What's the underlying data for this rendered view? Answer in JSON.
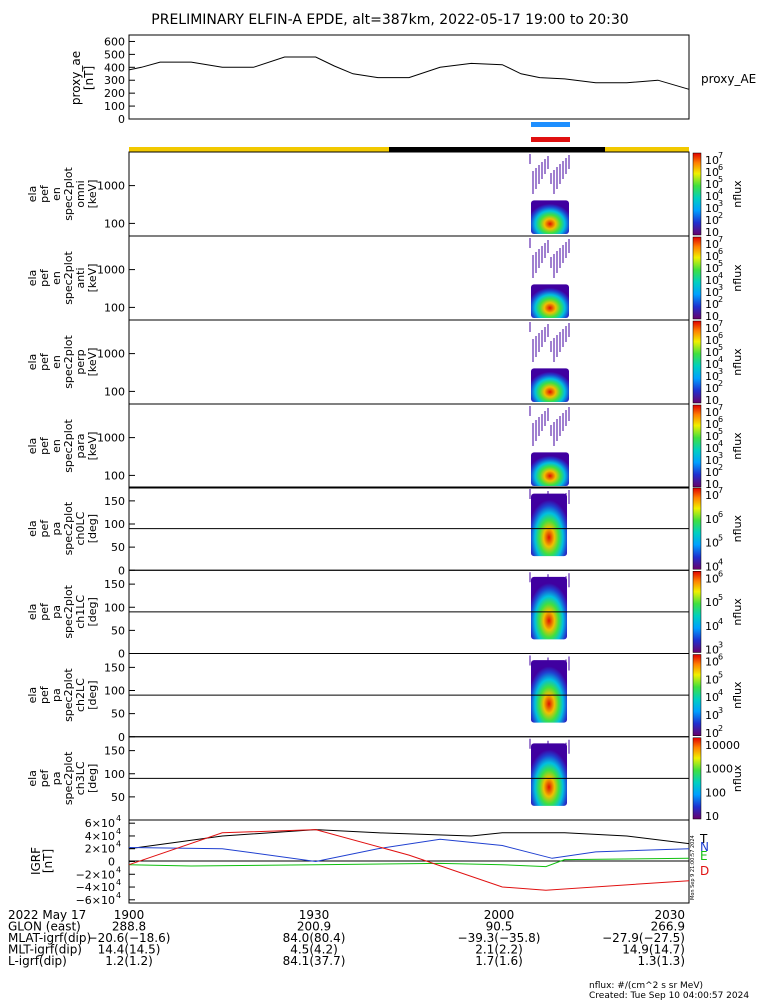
{
  "title": "PRELIMINARY ELFIN-A EPDE, alt=387km, 2022-05-17 19:00 to 20:30",
  "colors": {
    "gold": "#f2c900",
    "black": "#000000",
    "blue_flag": "#1e8fff",
    "red_flag": "#e01010",
    "ae_line": "#000000",
    "grf_T": "#000000",
    "grf_N": "#2040d0",
    "grf_E": "#10c010",
    "grf_D": "#e01010"
  },
  "proxy_ae": {
    "ylabel_lines": [
      "proxy_ae",
      "[nT]"
    ],
    "right_label": "proxy_AE",
    "ticks": [
      "0",
      "100",
      "200",
      "300",
      "400",
      "500",
      "600"
    ]
  },
  "spectrogram_panels": [
    {
      "ylabel_lines": [
        "ela",
        "pef",
        "en",
        "spec2plot",
        "omni",
        "[keV]"
      ],
      "ticks": [
        "100",
        "1000"
      ],
      "colorbar_ticks": [
        "10",
        "10",
        "10",
        "10",
        "10",
        "10",
        "10"
      ],
      "colorbar_exps": [
        "7",
        "6",
        "5",
        "4",
        "3",
        "2",
        ""
      ],
      "zlabel": "nflux"
    },
    {
      "ylabel_lines": [
        "ela",
        "pef",
        "en",
        "spec2plot",
        "anti",
        "[keV]"
      ],
      "ticks": [
        "100",
        "1000"
      ],
      "colorbar_ticks": [
        "10",
        "10",
        "10",
        "10",
        "10",
        "10",
        "10"
      ],
      "colorbar_exps": [
        "7",
        "6",
        "5",
        "4",
        "3",
        "2",
        ""
      ],
      "zlabel": "nflux"
    },
    {
      "ylabel_lines": [
        "ela",
        "pef",
        "en",
        "spec2plot",
        "perp",
        "[keV]"
      ],
      "ticks": [
        "100",
        "1000"
      ],
      "colorbar_ticks": [
        "10",
        "10",
        "10",
        "10",
        "10",
        "10",
        "10"
      ],
      "colorbar_exps": [
        "7",
        "6",
        "5",
        "4",
        "3",
        "2",
        ""
      ],
      "zlabel": "nflux"
    },
    {
      "ylabel_lines": [
        "ela",
        "pef",
        "en",
        "spec2plot",
        "para",
        "[keV]"
      ],
      "ticks": [
        "100",
        "1000"
      ],
      "colorbar_ticks": [
        "10",
        "10",
        "10",
        "10",
        "10",
        "10",
        "10"
      ],
      "colorbar_exps": [
        "7",
        "6",
        "5",
        "4",
        "3",
        "2",
        ""
      ],
      "zlabel": "nflux"
    }
  ],
  "pitch_panels": [
    {
      "ylabel_lines": [
        "ela",
        "pef",
        "pa",
        "spec2plot",
        "ch0LC",
        "[deg]"
      ],
      "ticks": [
        "0",
        "50",
        "100",
        "150"
      ],
      "colorbar_ticks": [
        "10",
        "10",
        "10",
        "10"
      ],
      "colorbar_exps": [
        "7",
        "6",
        "5",
        "4"
      ],
      "zlabel": "nflux"
    },
    {
      "ylabel_lines": [
        "ela",
        "pef",
        "pa",
        "spec2plot",
        "ch1LC",
        "[deg]"
      ],
      "ticks": [
        "0",
        "50",
        "100",
        "150"
      ],
      "colorbar_ticks": [
        "10",
        "10",
        "10",
        "10"
      ],
      "colorbar_exps": [
        "6",
        "5",
        "4",
        "3"
      ],
      "zlabel": "nflux"
    },
    {
      "ylabel_lines": [
        "ela",
        "pef",
        "pa",
        "spec2plot",
        "ch2LC",
        "[deg]"
      ],
      "ticks": [
        "0",
        "50",
        "100",
        "150"
      ],
      "colorbar_ticks": [
        "10",
        "10",
        "10",
        "10",
        "10"
      ],
      "colorbar_exps": [
        "6",
        "5",
        "4",
        "3",
        "2"
      ],
      "zlabel": "nflux"
    },
    {
      "ylabel_lines": [
        "ela",
        "pef",
        "pa",
        "spec2plot",
        "ch3LC",
        "[deg]"
      ],
      "ticks": [
        "50",
        "100",
        "150"
      ],
      "colorbar_ticks": [
        "10000",
        "1000",
        "100",
        "10"
      ],
      "colorbar_exps": [
        "",
        "",
        "",
        ""
      ],
      "zlabel": "nflux"
    }
  ],
  "igrf": {
    "ylabel_lines": [
      "IGRF",
      "[nT]"
    ],
    "ticks": [
      "−6×10",
      "−4×10",
      "−2×10",
      "0",
      "2×10",
      "4×10",
      "6×10"
    ],
    "tick_exp": "4",
    "legend": [
      "T",
      "N",
      "E",
      "D"
    ],
    "stamp": "Mon Sep 9 21:00:57 2024"
  },
  "ephemeris": {
    "rows": [
      {
        "label": "2022 May 17",
        "values": [
          "1900",
          "1930",
          "2000",
          "2030"
        ]
      },
      {
        "label": "GLON (east)",
        "values": [
          "288.8",
          "200.9",
          "90.5",
          "266.9"
        ]
      },
      {
        "label": "MLAT-igrf(dip)",
        "values": [
          "−20.6(−18.6)",
          "84.0(80.4)",
          "−39.3(−35.8)",
          "−27.9(−27.5)"
        ]
      },
      {
        "label": "MLT-igrf(dip)",
        "values": [
          "14.4(14.5)",
          "4.5(4.2)",
          "2.1(2.2)",
          "14.9(14.7)"
        ]
      },
      {
        "label": "L-igrf(dip)",
        "values": [
          "1.2(1.2)",
          "84.1(37.7)",
          "1.7(1.6)",
          "1.3(1.3)"
        ]
      }
    ]
  },
  "footer": {
    "units": "nflux: #/(cm^2 s sr MeV)",
    "created": "Created: Tue Sep 10 04:00:57 2024"
  },
  "chart_data": {
    "type": "line",
    "title": "PRELIMINARY ELFIN-A EPDE, alt=387km, 2022-05-17 19:00 to 20:30",
    "x_units": "UT (HHMM)",
    "xlim": [
      "1900",
      "2030"
    ],
    "series": [
      {
        "name": "proxy_AE",
        "unit": "nT",
        "ylim": [
          0,
          650
        ],
        "x_min": [
          0,
          2,
          5,
          10,
          15,
          20,
          25,
          30,
          33,
          36,
          40,
          45,
          50,
          55,
          60,
          63,
          66,
          70,
          75,
          80,
          85,
          90
        ],
        "y": [
          380,
          400,
          440,
          440,
          400,
          400,
          480,
          480,
          410,
          350,
          320,
          320,
          400,
          430,
          420,
          350,
          320,
          310,
          280,
          280,
          300,
          230
        ]
      },
      {
        "name": "T",
        "unit": "nT",
        "ylim": [
          -65000,
          65000
        ],
        "x_min": [
          0,
          15,
          30,
          40,
          55,
          60,
          70,
          80,
          90
        ],
        "y": [
          20000,
          40000,
          50000,
          45000,
          40000,
          45000,
          45000,
          40000,
          28000
        ]
      },
      {
        "name": "N",
        "unit": "nT",
        "ylim": [
          -65000,
          65000
        ],
        "x_min": [
          0,
          15,
          30,
          40,
          50,
          60,
          68,
          75,
          90
        ],
        "y": [
          22000,
          20000,
          0,
          20000,
          35000,
          25000,
          5000,
          15000,
          20000
        ]
      },
      {
        "name": "E",
        "unit": "nT",
        "ylim": [
          -65000,
          65000
        ],
        "x_min": [
          0,
          10,
          30,
          50,
          60,
          67,
          70,
          90
        ],
        "y": [
          -5000,
          -7000,
          -5000,
          -3000,
          -5000,
          -8000,
          3000,
          5000
        ]
      },
      {
        "name": "D",
        "unit": "nT",
        "ylim": [
          -65000,
          65000
        ],
        "x_min": [
          0,
          15,
          30,
          45,
          60,
          67,
          90
        ],
        "y": [
          -5000,
          45000,
          50000,
          10000,
          -40000,
          -45000,
          -30000
        ]
      }
    ]
  }
}
